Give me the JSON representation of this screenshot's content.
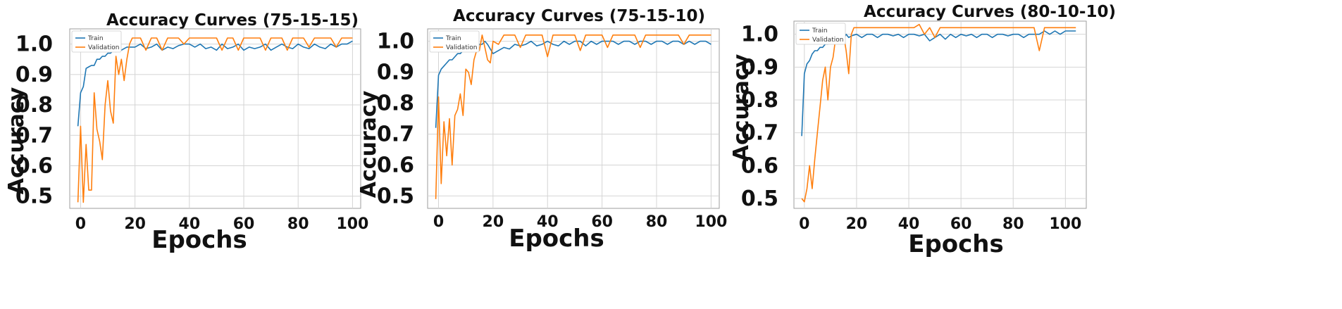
{
  "colors": {
    "train": "#1f77b4",
    "validation": "#ff7f0e"
  },
  "chart_data": [
    {
      "type": "line",
      "title": "Accuracy Curves (75-15-15)",
      "xlabel": "Epochs",
      "ylabel": "Accuracy",
      "xlim": [
        -4,
        103
      ],
      "ylim": [
        0.46,
        1.05
      ],
      "xticks": [
        "0",
        "20",
        "40",
        "60",
        "80",
        "100"
      ],
      "yticks": [
        "0.5",
        "0.6",
        "0.7",
        "0.8",
        "0.9",
        "1.0"
      ],
      "grid": true,
      "legend": "top-left",
      "series": [
        {
          "name": "Train",
          "x": [
            -1,
            0,
            1,
            2,
            3,
            4,
            5,
            6,
            7,
            8,
            9,
            10,
            11,
            12,
            13,
            14,
            15,
            16,
            17,
            18,
            20,
            22,
            24,
            26,
            28,
            30,
            32,
            34,
            36,
            38,
            40,
            42,
            44,
            46,
            48,
            50,
            52,
            54,
            56,
            58,
            60,
            62,
            64,
            66,
            68,
            70,
            72,
            74,
            76,
            78,
            80,
            82,
            84,
            86,
            88,
            90,
            92,
            94,
            96,
            98,
            100
          ],
          "y": [
            0.73,
            0.84,
            0.86,
            0.92,
            0.925,
            0.93,
            0.93,
            0.95,
            0.95,
            0.96,
            0.96,
            0.97,
            0.97,
            0.98,
            0.975,
            0.98,
            0.98,
            0.985,
            0.99,
            0.99,
            0.99,
            1.0,
            0.985,
            0.99,
            1.0,
            0.98,
            0.99,
            0.985,
            0.995,
            1.0,
            1.0,
            0.99,
            1.0,
            0.985,
            0.99,
            0.98,
            1.0,
            0.985,
            0.99,
            1.0,
            0.98,
            0.99,
            0.985,
            0.99,
            1.0,
            0.98,
            0.99,
            1.0,
            0.99,
            0.985,
            1.0,
            0.99,
            0.985,
            1.0,
            0.99,
            0.985,
            1.0,
            0.99,
            1.0,
            1.0,
            1.01
          ]
        },
        {
          "name": "Validation",
          "x": [
            -1,
            0,
            1,
            2,
            3,
            4,
            5,
            6,
            7,
            8,
            9,
            10,
            11,
            12,
            13,
            14,
            15,
            16,
            17,
            18,
            19,
            20,
            22,
            24,
            26,
            28,
            30,
            32,
            34,
            36,
            38,
            40,
            42,
            44,
            46,
            48,
            50,
            52,
            54,
            56,
            58,
            60,
            62,
            64,
            66,
            68,
            70,
            72,
            74,
            76,
            78,
            80,
            82,
            84,
            86,
            88,
            90,
            92,
            94,
            96,
            98,
            100
          ],
          "y": [
            0.48,
            0.73,
            0.48,
            0.67,
            0.52,
            0.52,
            0.84,
            0.72,
            0.68,
            0.62,
            0.8,
            0.88,
            0.78,
            0.74,
            0.96,
            0.9,
            0.95,
            0.88,
            0.95,
            1.0,
            1.02,
            1.02,
            1.02,
            0.98,
            1.02,
            1.02,
            0.98,
            1.02,
            1.02,
            1.02,
            1.0,
            1.02,
            1.02,
            1.02,
            1.02,
            1.02,
            1.02,
            0.98,
            1.02,
            1.02,
            0.98,
            1.02,
            1.02,
            1.02,
            1.02,
            0.98,
            1.02,
            1.02,
            1.02,
            0.98,
            1.02,
            1.02,
            1.02,
            0.99,
            1.02,
            1.02,
            1.02,
            1.02,
            0.99,
            1.02,
            1.02,
            1.02
          ]
        }
      ]
    },
    {
      "type": "line",
      "title": "Accuracy Curves (75-15-10)",
      "xlabel": "Epochs",
      "ylabel": "Accuracy",
      "xlim": [
        -4,
        103
      ],
      "ylim": [
        0.46,
        1.04
      ],
      "xticks": [
        "0",
        "20",
        "40",
        "60",
        "80",
        "100"
      ],
      "yticks": [
        "0.5",
        "0.6",
        "0.7",
        "0.8",
        "0.9",
        "1.0"
      ],
      "grid": true,
      "legend": "top-left",
      "series": [
        {
          "name": "Train",
          "x": [
            -1,
            0,
            1,
            2,
            3,
            4,
            5,
            6,
            7,
            8,
            9,
            10,
            11,
            12,
            13,
            14,
            15,
            16,
            17,
            18,
            20,
            22,
            24,
            26,
            28,
            30,
            32,
            34,
            36,
            38,
            40,
            42,
            44,
            46,
            48,
            50,
            52,
            54,
            56,
            58,
            60,
            62,
            64,
            66,
            68,
            70,
            72,
            74,
            76,
            78,
            80,
            82,
            84,
            86,
            88,
            90,
            92,
            94,
            96,
            98,
            100
          ],
          "y": [
            0.72,
            0.89,
            0.91,
            0.92,
            0.93,
            0.94,
            0.94,
            0.95,
            0.96,
            0.96,
            0.97,
            0.97,
            0.98,
            0.97,
            0.98,
            0.975,
            0.99,
            0.99,
            1.0,
            0.99,
            0.96,
            0.97,
            0.98,
            0.975,
            0.99,
            0.985,
            0.99,
            1.0,
            0.985,
            0.99,
            1.0,
            0.99,
            0.985,
            1.0,
            0.99,
            1.0,
            1.0,
            0.985,
            1.0,
            0.99,
            1.0,
            1.0,
            1.0,
            0.99,
            1.0,
            1.0,
            0.99,
            1.0,
            1.0,
            0.99,
            1.0,
            1.0,
            0.99,
            1.0,
            1.0,
            0.99,
            1.0,
            0.99,
            1.0,
            1.0,
            0.99
          ]
        },
        {
          "name": "Validation",
          "x": [
            -1,
            0,
            1,
            2,
            3,
            4,
            5,
            6,
            7,
            8,
            9,
            10,
            11,
            12,
            13,
            14,
            15,
            16,
            17,
            18,
            19,
            20,
            22,
            24,
            26,
            28,
            30,
            32,
            34,
            36,
            38,
            40,
            42,
            44,
            46,
            48,
            50,
            52,
            54,
            56,
            58,
            60,
            62,
            64,
            66,
            68,
            70,
            72,
            74,
            76,
            78,
            80,
            82,
            84,
            86,
            88,
            90,
            92,
            94,
            96,
            98,
            100
          ],
          "y": [
            0.49,
            0.82,
            0.54,
            0.74,
            0.63,
            0.75,
            0.6,
            0.76,
            0.78,
            0.83,
            0.76,
            0.91,
            0.9,
            0.86,
            0.94,
            0.97,
            0.97,
            1.02,
            0.98,
            0.94,
            0.93,
            1.0,
            0.99,
            1.02,
            1.02,
            1.02,
            0.98,
            1.02,
            1.02,
            1.02,
            1.02,
            0.95,
            1.02,
            1.02,
            1.02,
            1.02,
            1.02,
            0.97,
            1.02,
            1.02,
            1.02,
            1.02,
            0.98,
            1.02,
            1.02,
            1.02,
            1.02,
            1.02,
            0.98,
            1.02,
            1.02,
            1.02,
            1.02,
            1.02,
            1.02,
            1.02,
            0.99,
            1.02,
            1.02,
            1.02,
            1.02,
            1.02
          ]
        }
      ]
    },
    {
      "type": "line",
      "title": "Accuracy Curves (80-10-10)",
      "xlabel": "Epochs",
      "ylabel": "Accuracy",
      "xlim": [
        -4,
        108
      ],
      "ylim": [
        0.47,
        1.04
      ],
      "xticks": [
        "0",
        "20",
        "40",
        "60",
        "80",
        "100"
      ],
      "yticks": [
        "0.5",
        "0.6",
        "0.7",
        "0.8",
        "0.9",
        "1.0"
      ],
      "grid": true,
      "legend": "top-left",
      "series": [
        {
          "name": "Train",
          "x": [
            -1,
            0,
            1,
            2,
            3,
            4,
            5,
            6,
            7,
            8,
            9,
            10,
            11,
            12,
            13,
            14,
            15,
            16,
            17,
            18,
            20,
            22,
            24,
            26,
            28,
            30,
            32,
            34,
            36,
            38,
            40,
            42,
            44,
            46,
            48,
            50,
            52,
            54,
            56,
            58,
            60,
            62,
            64,
            66,
            68,
            70,
            72,
            74,
            76,
            78,
            80,
            82,
            84,
            86,
            88,
            90,
            92,
            94,
            96,
            98,
            100,
            102,
            104
          ],
          "y": [
            0.69,
            0.88,
            0.91,
            0.92,
            0.94,
            0.95,
            0.95,
            0.96,
            0.96,
            0.97,
            0.97,
            0.98,
            0.975,
            0.98,
            0.99,
            0.99,
            0.985,
            1.0,
            0.99,
            0.995,
            1.0,
            0.99,
            1.0,
            1.0,
            0.99,
            1.0,
            1.0,
            0.995,
            1.0,
            0.99,
            1.0,
            1.0,
            0.995,
            1.0,
            0.98,
            0.99,
            1.0,
            0.985,
            1.0,
            0.99,
            1.0,
            0.995,
            1.0,
            0.99,
            1.0,
            1.0,
            0.99,
            1.0,
            1.0,
            0.995,
            1.0,
            1.0,
            0.99,
            1.0,
            1.0,
            1.0,
            1.01,
            1.0,
            1.01,
            1.0,
            1.01,
            1.01,
            1.01
          ]
        },
        {
          "name": "Validation",
          "x": [
            -1,
            0,
            1,
            2,
            3,
            4,
            5,
            6,
            7,
            8,
            9,
            10,
            11,
            12,
            13,
            14,
            15,
            16,
            17,
            18,
            19,
            20,
            22,
            24,
            26,
            28,
            30,
            32,
            34,
            36,
            38,
            40,
            42,
            44,
            46,
            48,
            50,
            52,
            54,
            56,
            58,
            60,
            62,
            64,
            66,
            68,
            70,
            72,
            74,
            76,
            78,
            80,
            82,
            84,
            86,
            88,
            90,
            92,
            94,
            96,
            98,
            100,
            102,
            104
          ],
          "y": [
            0.5,
            0.49,
            0.53,
            0.6,
            0.53,
            0.62,
            0.7,
            0.78,
            0.86,
            0.9,
            0.8,
            0.9,
            0.93,
            0.99,
            1.0,
            1.02,
            1.0,
            0.95,
            0.88,
            1.0,
            1.02,
            1.02,
            1.02,
            1.02,
            1.02,
            1.02,
            1.02,
            1.02,
            1.02,
            1.02,
            1.02,
            1.02,
            1.02,
            1.03,
            1.0,
            1.02,
            0.99,
            1.02,
            1.02,
            1.02,
            1.02,
            1.02,
            1.02,
            1.02,
            1.02,
            1.02,
            1.02,
            1.02,
            1.02,
            1.02,
            1.02,
            1.02,
            1.02,
            1.02,
            1.02,
            1.02,
            0.95,
            1.02,
            1.02,
            1.02,
            1.02,
            1.02,
            1.02,
            1.02
          ]
        }
      ]
    }
  ]
}
